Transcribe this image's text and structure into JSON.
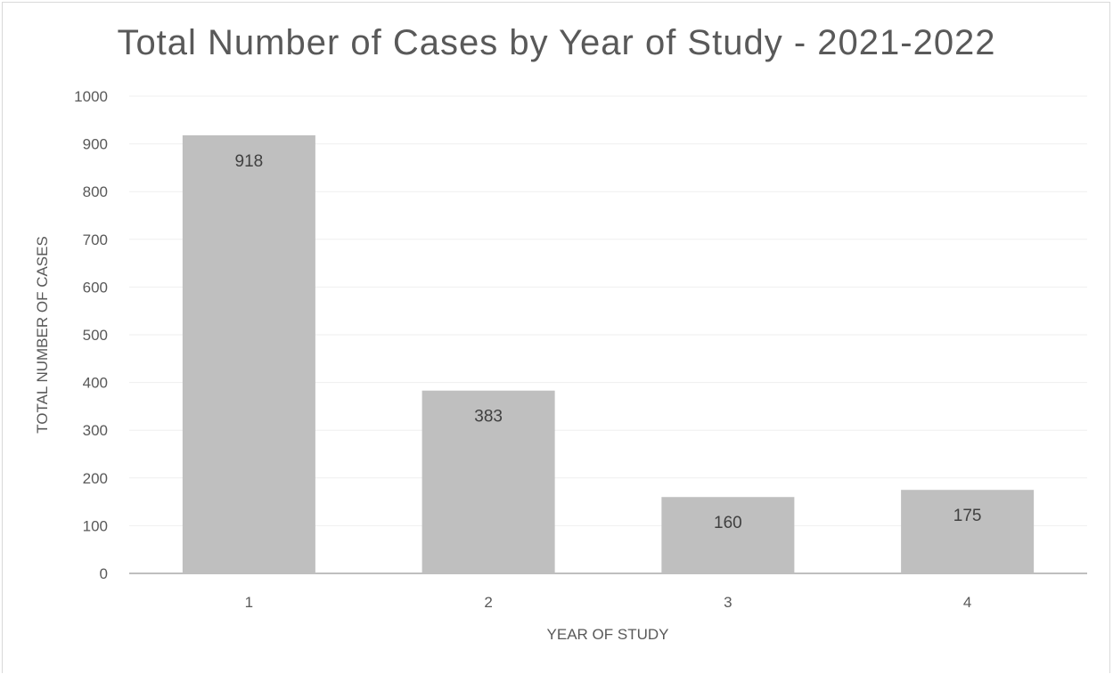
{
  "chart_data": {
    "type": "bar",
    "title": "Total Number of Cases by Year of Study - 2021-2022",
    "xlabel": "YEAR OF STUDY",
    "ylabel": "TOTAL NUMBER OF CASES",
    "categories": [
      "1",
      "2",
      "3",
      "4"
    ],
    "values": [
      918,
      383,
      160,
      175
    ],
    "data_labels": [
      "918",
      "383",
      "160",
      "175"
    ],
    "ylim": [
      0,
      1000
    ],
    "yticks": [
      "0",
      "100",
      "200",
      "300",
      "400",
      "500",
      "600",
      "700",
      "800",
      "900",
      "1000"
    ],
    "grid": true,
    "legend": "none",
    "bar_color": "#bfbfbf",
    "grid_color": "#efefef",
    "axis_color": "#bfbfbf",
    "text_color": "#595959",
    "label_color": "#404040"
  }
}
